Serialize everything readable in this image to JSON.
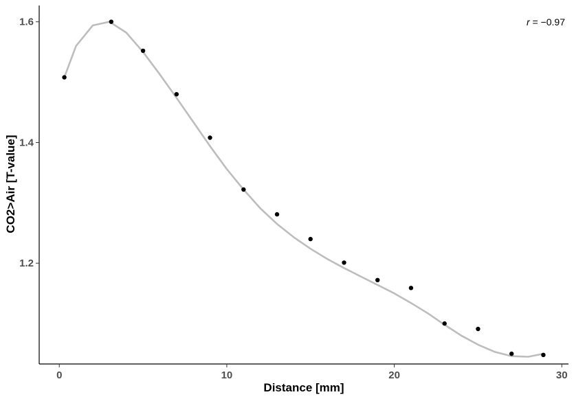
{
  "chart_data": {
    "type": "scatter",
    "title": "",
    "xlabel": "Distance [mm]",
    "ylabel": "CO2>Air [T-value]",
    "xlim": [
      -1.2,
      30.4
    ],
    "ylim": [
      1.033,
      1.627
    ],
    "x_ticks": [
      0,
      10,
      20,
      30
    ],
    "y_ticks": [
      1.2,
      1.4,
      1.6
    ],
    "x_tick_labels": [
      "0",
      "10",
      "20",
      "30"
    ],
    "y_tick_labels": [
      "1.2",
      "1.4",
      "1.6"
    ],
    "grid": false,
    "annotation": {
      "r_symbol": "r",
      "text": " = −0.97",
      "value": -0.97,
      "placement": "top-right"
    },
    "series": [
      {
        "kind": "points",
        "color": "#000000",
        "x": [
          0.3,
          3.1,
          5.0,
          7.0,
          9.0,
          11.0,
          13.0,
          15.0,
          17.0,
          19.0,
          21.0,
          23.0,
          25.0,
          27.0,
          28.9
        ],
        "y": [
          1.508,
          1.6,
          1.552,
          1.48,
          1.408,
          1.322,
          1.281,
          1.24,
          1.201,
          1.172,
          1.159,
          1.1,
          1.091,
          1.05,
          1.048
        ]
      },
      {
        "kind": "smooth",
        "color": "#bdbdbd",
        "x": [
          0.3,
          1.0,
          2.0,
          3.0,
          4.0,
          5.0,
          6.0,
          7.0,
          8.0,
          9.0,
          10.0,
          11.0,
          12.0,
          13.0,
          14.0,
          15.0,
          16.0,
          17.0,
          18.0,
          19.0,
          20.0,
          21.0,
          22.0,
          23.0,
          24.0,
          25.0,
          26.0,
          27.0,
          28.0,
          28.9
        ],
        "y": [
          1.508,
          1.56,
          1.594,
          1.6,
          1.582,
          1.55,
          1.513,
          1.474,
          1.434,
          1.394,
          1.356,
          1.322,
          1.291,
          1.265,
          1.243,
          1.224,
          1.207,
          1.192,
          1.178,
          1.164,
          1.15,
          1.134,
          1.117,
          1.098,
          1.08,
          1.065,
          1.053,
          1.046,
          1.045,
          1.05
        ]
      }
    ]
  }
}
